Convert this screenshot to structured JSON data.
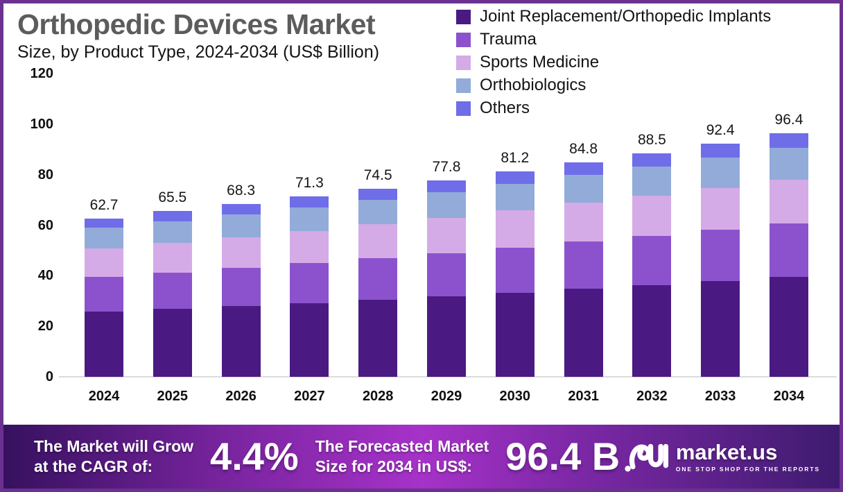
{
  "header": {
    "title": "Orthopedic Devices Market",
    "subtitle": "Size, by Product Type, 2024-2034 (US$ Billion)"
  },
  "chart_data": {
    "type": "bar",
    "stacked": true,
    "title": "Orthopedic Devices Market Size, by Product Type, 2024-2034 (US$ Billion)",
    "categories": [
      "2024",
      "2025",
      "2026",
      "2027",
      "2028",
      "2029",
      "2030",
      "2031",
      "2032",
      "2033",
      "2034"
    ],
    "totals": [
      62.7,
      65.5,
      68.3,
      71.3,
      74.5,
      77.8,
      81.2,
      84.8,
      88.5,
      92.4,
      96.4
    ],
    "series": [
      {
        "name": "Joint Replacement/Orthopedic Implants",
        "color": "#4a1a82",
        "values": [
          25.7,
          26.9,
          28.0,
          29.2,
          30.5,
          31.9,
          33.3,
          34.8,
          36.3,
          37.9,
          39.5
        ]
      },
      {
        "name": "Trauma",
        "color": "#8c52cd",
        "values": [
          13.8,
          14.4,
          15.0,
          15.7,
          16.4,
          17.1,
          17.9,
          18.7,
          19.5,
          20.3,
          21.2
        ]
      },
      {
        "name": "Sports Medicine",
        "color": "#d4abe6",
        "values": [
          11.3,
          11.8,
          12.3,
          12.8,
          13.4,
          14.0,
          14.6,
          15.3,
          15.9,
          16.6,
          17.4
        ]
      },
      {
        "name": "Orthobiologics",
        "color": "#92abd9",
        "values": [
          8.2,
          8.5,
          8.9,
          9.3,
          9.7,
          10.1,
          10.6,
          11.0,
          11.5,
          12.0,
          12.5
        ]
      },
      {
        "name": "Others",
        "color": "#6f6de8",
        "values": [
          3.7,
          3.9,
          4.1,
          4.3,
          4.5,
          4.7,
          4.8,
          5.0,
          5.3,
          5.6,
          5.8
        ]
      }
    ],
    "xlabel": "",
    "ylabel": "",
    "ylim": [
      0,
      120
    ],
    "yticks": [
      0,
      20,
      40,
      60,
      80,
      100,
      120
    ],
    "legend_position": "top-right",
    "grid": false
  },
  "banner": {
    "cagr_label_line1": "The Market will Grow",
    "cagr_label_line2": "at the CAGR of:",
    "cagr_value": "4.4%",
    "forecast_label_line1": "The Forecasted Market",
    "forecast_label_line2": "Size for 2034 in US$:",
    "forecast_value": "96.4 B",
    "brand": "market.us",
    "brand_tagline": "ONE STOP SHOP FOR THE REPORTS"
  },
  "colors": {
    "border": "#6b3190",
    "title_text": "#5c5c5c",
    "banner_gradient_edge": "#36115f",
    "banner_gradient_center": "#a632c8",
    "baseline": "#dcdcdc"
  }
}
